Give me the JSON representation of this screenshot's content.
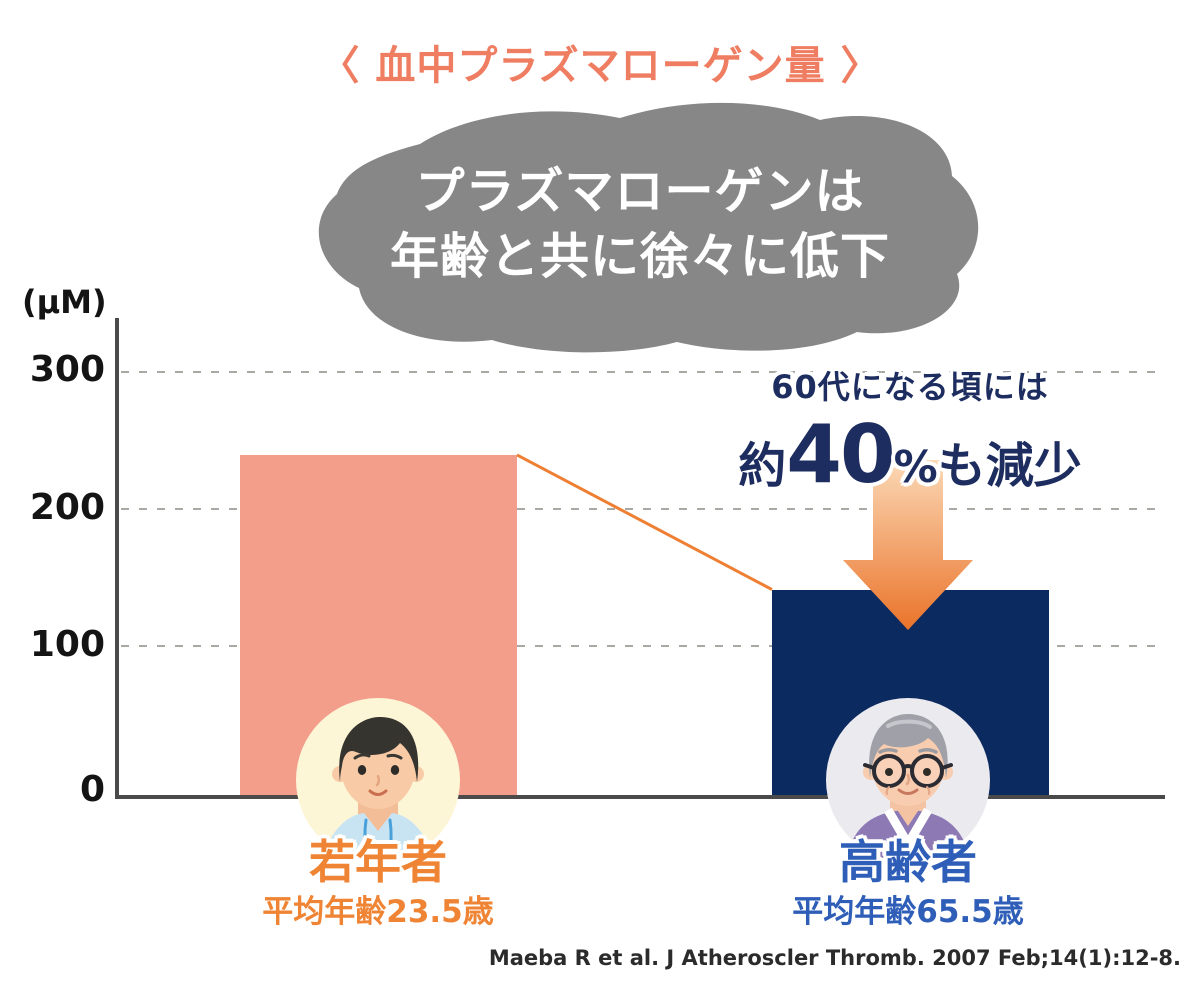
{
  "header": {
    "title": "〈 血中プラズマローゲン量 〉"
  },
  "callout": {
    "line1": "プラズマローゲンは",
    "line2": "年齢と共に徐々に低下",
    "bg_color": "#878787",
    "text_color": "#ffffff"
  },
  "chart_data": {
    "type": "bar",
    "title": "血中プラズマローゲン量",
    "unit_label": "(μM)",
    "categories": [
      "若年者",
      "高齢者"
    ],
    "category_sublabels": [
      "平均年齢23.5歳",
      "平均年齢65.5歳"
    ],
    "series": [
      {
        "name": "血中プラズマローゲン量 (μM)",
        "values": [
          240,
          145
        ]
      }
    ],
    "y_ticks": [
      "300",
      "200",
      "100",
      "0"
    ],
    "ylim": [
      0,
      330
    ],
    "grid": "horizontal-dashed",
    "legend": "none",
    "bar_colors": [
      "#f29e8b",
      "#0b2a5f"
    ],
    "annotation": "60代になる頃には 約40%も減少",
    "trend_line_color": "#ee7f33"
  },
  "annotation": {
    "line1": "60代になる頃には",
    "prefix": "約",
    "number": "40",
    "percent": "%",
    "suffix": "も減少",
    "color": "#1e2d5f"
  },
  "labels": {
    "young": {
      "title": "若年者",
      "subtitle": "平均年齢23.5歳",
      "color": "#ef8434"
    },
    "old": {
      "title": "高齢者",
      "subtitle": "平均年齢65.5歳",
      "color": "#2e5eb8"
    }
  },
  "citation": "Maeba R et al. J Atheroscler Thromb. 2007 Feb;14(1):12-8.",
  "colors": {
    "title": "#ef7d62",
    "callout_bg": "#878787",
    "bar_young": "#f29e8b",
    "bar_old": "#0b2a5f",
    "accent_orange": "#ee7f33",
    "arrow_gradient_top": "#fbd9b6",
    "arrow_gradient_bottom": "#ea732a",
    "axis": "#4a4a4a"
  },
  "icons": {
    "young_avatar": "young-man-avatar",
    "old_avatar": "elderly-man-avatar",
    "arrow": "down-arrow"
  }
}
